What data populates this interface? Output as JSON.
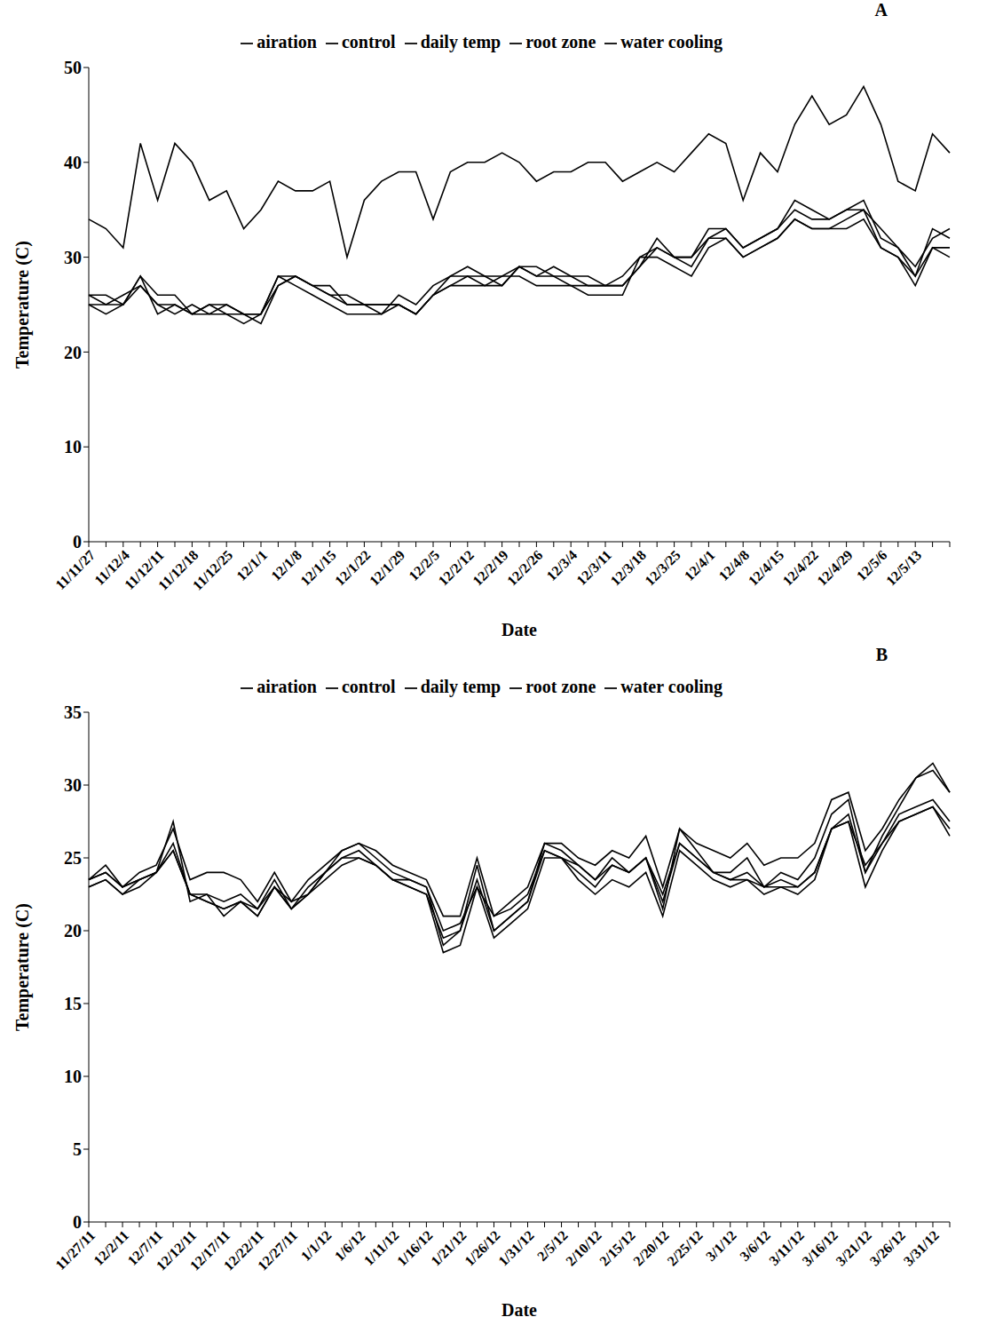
{
  "chart_data": [
    {
      "type": "line",
      "title": "A",
      "x_label": "Date",
      "y_label": "Temperature (C)",
      "legend": "top",
      "grid": false,
      "categories": [
        "11/11/27",
        null,
        "11/12/4",
        null,
        "11/12/11",
        null,
        "11/12/18",
        null,
        "11/12/25",
        null,
        "12/1/1",
        null,
        "12/1/8",
        null,
        "12/1/15",
        null,
        "12/1/22",
        null,
        "12/1/29",
        null,
        "12/2/5",
        null,
        "12/2/12",
        null,
        "12/2/19",
        null,
        "12/2/26",
        null,
        "12/3/4",
        null,
        "12/3/11",
        null,
        "12/3/18",
        null,
        "12/3/25",
        null,
        "12/4/1",
        null,
        "12/4/8",
        null,
        "12/4/15",
        null,
        "12/4/22",
        null,
        "12/4/29",
        null,
        "12/5/6",
        null,
        "12/5/13",
        null,
        null
      ],
      "ylim": [
        0,
        50
      ],
      "yticks": [
        0,
        10,
        20,
        30,
        40,
        50
      ],
      "series": [
        {
          "name": "daily temp",
          "color": "#000000",
          "values": [
            34,
            33,
            31,
            42,
            36,
            42,
            40,
            36,
            37,
            33,
            35,
            38,
            37,
            37,
            38,
            30,
            36,
            38,
            39,
            39,
            34,
            39,
            40,
            40,
            41,
            40,
            38,
            39,
            39,
            40,
            40,
            38,
            39,
            40,
            39,
            41,
            43,
            42,
            36,
            41,
            39,
            44,
            47,
            44,
            45,
            48,
            44,
            38,
            37,
            43,
            41
          ]
        },
        {
          "name": "control",
          "color": "#000000",
          "values": [
            26,
            25,
            25,
            27,
            25,
            25,
            24,
            25,
            25,
            24,
            24,
            27,
            28,
            27,
            26,
            25,
            25,
            25,
            25,
            24,
            26,
            27,
            28,
            27,
            27,
            29,
            28,
            28,
            27,
            27,
            27,
            27,
            29,
            31,
            30,
            30,
            32,
            33,
            31,
            32,
            33,
            35,
            34,
            34,
            35,
            36,
            32,
            31,
            28,
            33,
            32
          ]
        },
        {
          "name": "water cooling",
          "color": "#000000",
          "values": [
            25,
            24,
            25,
            28,
            24,
            25,
            24,
            24,
            24,
            23,
            24,
            28,
            27,
            26,
            25,
            24,
            24,
            24,
            25,
            24,
            26,
            27,
            27,
            27,
            28,
            28,
            27,
            27,
            27,
            26,
            26,
            26,
            30,
            30,
            29,
            28,
            31,
            32,
            30,
            31,
            32,
            34,
            33,
            33,
            34,
            35,
            31,
            30,
            27,
            31,
            31
          ]
        },
        {
          "name": "root zone",
          "color": "#000000",
          "values": [
            25,
            25,
            26,
            27,
            25,
            24,
            25,
            24,
            25,
            24,
            23,
            27,
            28,
            27,
            26,
            26,
            25,
            24,
            26,
            25,
            27,
            28,
            28,
            28,
            28,
            29,
            29,
            28,
            28,
            27,
            27,
            27,
            29,
            32,
            30,
            30,
            33,
            33,
            31,
            32,
            33,
            36,
            35,
            34,
            35,
            35,
            33,
            31,
            29,
            32,
            33
          ]
        },
        {
          "name": "airation",
          "color": "#000000",
          "values": [
            26,
            26,
            25,
            28,
            26,
            26,
            24,
            25,
            24,
            24,
            24,
            28,
            28,
            27,
            27,
            25,
            25,
            25,
            25,
            24,
            26,
            28,
            29,
            28,
            27,
            29,
            28,
            29,
            28,
            28,
            27,
            28,
            30,
            31,
            30,
            29,
            32,
            32,
            30,
            31,
            32,
            34,
            33,
            33,
            33,
            34,
            31,
            30,
            28,
            31,
            30
          ]
        }
      ]
    },
    {
      "type": "line",
      "title": "B",
      "x_label": "Date",
      "y_label": "Temperature (C)",
      "legend": "top",
      "grid": false,
      "categories": [
        "11/27/11",
        null,
        "12/2/11",
        null,
        "12/7/11",
        null,
        "12/12/11",
        null,
        "12/17/11",
        null,
        "12/22/11",
        null,
        "12/27/11",
        null,
        "1/1/12",
        null,
        "1/6/12",
        null,
        "1/11/12",
        null,
        "1/16/12",
        null,
        "1/21/12",
        null,
        "1/26/12",
        null,
        "1/31/12",
        null,
        "2/5/12",
        null,
        "2/10/12",
        null,
        "2/15/12",
        null,
        "2/20/12",
        null,
        "2/25/12",
        null,
        "3/1/12",
        null,
        "3/6/12",
        null,
        "3/11/12",
        null,
        "3/16/12",
        null,
        "3/21/12",
        null,
        "3/26/12",
        null,
        "3/31/12",
        null
      ],
      "ylim": [
        0,
        35
      ],
      "yticks": [
        0,
        5,
        10,
        15,
        20,
        25,
        30,
        35
      ],
      "series": [
        {
          "name": "daily temp",
          "color": "#000000",
          "values": [
            23.5,
            24,
            23,
            23.5,
            24,
            27.5,
            22,
            22.5,
            22,
            22.5,
            21.5,
            23.5,
            21.5,
            23,
            24,
            25.5,
            26,
            25,
            24,
            23.5,
            23,
            19,
            20,
            24.5,
            20,
            21,
            22,
            26,
            25.5,
            24.5,
            23.5,
            25,
            24,
            25,
            21.5,
            27,
            25.5,
            24,
            24,
            25,
            23,
            24,
            23.5,
            25,
            28,
            29,
            24,
            26.5,
            28.5,
            30.5,
            31.5,
            29.5
          ]
        },
        {
          "name": "control",
          "color": "#000000",
          "values": [
            23.5,
            24.5,
            23,
            24,
            24.5,
            27,
            23.5,
            24,
            24,
            23.5,
            22,
            24,
            22,
            23.5,
            24.5,
            25.5,
            26,
            25.5,
            24.5,
            24,
            23.5,
            21,
            21,
            25,
            21,
            22,
            23,
            26,
            26,
            25,
            24.5,
            25.5,
            25,
            26.5,
            23,
            27,
            26,
            25.5,
            25,
            26,
            24.5,
            25,
            25,
            26,
            29,
            29.5,
            25.5,
            27,
            29,
            30.5,
            31,
            29.5
          ]
        },
        {
          "name": "water cooling",
          "color": "#000000",
          "values": [
            23,
            23.5,
            22.5,
            23,
            24,
            25.5,
            22.5,
            22,
            21.5,
            22,
            21,
            23,
            21.5,
            22.5,
            24,
            25,
            25.5,
            24.5,
            23.5,
            23,
            22.5,
            18.5,
            19,
            23,
            19.5,
            20.5,
            21.5,
            25,
            25,
            23.5,
            22.5,
            23.5,
            23,
            24,
            21,
            25.5,
            24.5,
            23.5,
            23,
            23.5,
            22.5,
            23,
            22.5,
            23.5,
            27,
            27.5,
            23,
            25.5,
            27.5,
            28,
            28.5,
            26.5
          ]
        },
        {
          "name": "root zone",
          "color": "#000000",
          "values": [
            23,
            23.5,
            22.5,
            23.5,
            24,
            26,
            22.5,
            22.5,
            21,
            22,
            21,
            23,
            21.5,
            22.5,
            23.5,
            24.5,
            25,
            24.5,
            23.5,
            23,
            22.5,
            19.5,
            20,
            23.5,
            20,
            21,
            22,
            25.5,
            25,
            24,
            23,
            24.5,
            24,
            25,
            22,
            26,
            25,
            24,
            23.5,
            24,
            23,
            23.5,
            23,
            24,
            27,
            28,
            24,
            26,
            28,
            28.5,
            29,
            27.5
          ]
        },
        {
          "name": "airation",
          "color": "#000000",
          "values": [
            23.5,
            24,
            23,
            23.5,
            24,
            25.5,
            22.5,
            22,
            21.5,
            22,
            21.5,
            23,
            22,
            22.5,
            24,
            25,
            25,
            24.5,
            23.5,
            23.5,
            23,
            20,
            20.5,
            23,
            21,
            21.5,
            22.5,
            25.5,
            25,
            24.5,
            23.5,
            24.5,
            24,
            25,
            22.5,
            26,
            25,
            24,
            23.5,
            23.5,
            23,
            23,
            23,
            24,
            27,
            27.5,
            24.5,
            26,
            27.5,
            28,
            28.5,
            27
          ]
        }
      ]
    }
  ]
}
